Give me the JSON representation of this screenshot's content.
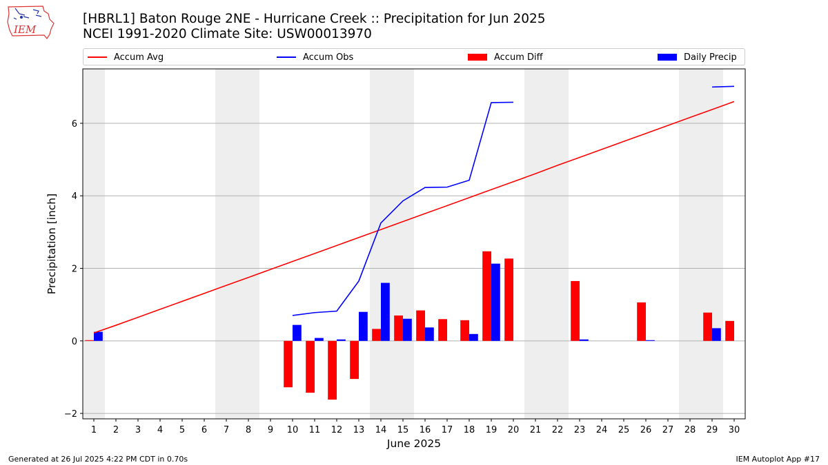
{
  "header": {
    "title_line1": "[HBRL1] Baton Rouge 2NE - Hurricane Creek :: Precipitation for Jun 2025",
    "title_line2": "NCEI 1991-2020 Climate Site: USW00013970",
    "logo_text": "IEM"
  },
  "legend": [
    {
      "label": "Accum Avg",
      "kind": "line",
      "color": "#ff0000"
    },
    {
      "label": "Accum Obs",
      "kind": "line",
      "color": "#0000ff"
    },
    {
      "label": "Accum Diff",
      "kind": "bar",
      "color": "#ff0000"
    },
    {
      "label": "Daily Precip",
      "kind": "bar",
      "color": "#0000ff"
    }
  ],
  "footer": {
    "generated": "Generated at 26 Jul 2025 4:22 PM CDT in 0.70s",
    "app": "IEM Autoplot App #17"
  },
  "chart_data": {
    "type": "bar",
    "title": "[HBRL1] Baton Rouge 2NE - Hurricane Creek :: Precipitation for Jun 2025",
    "xlabel": "June 2025",
    "ylabel": "Precipitation [inch]",
    "x": [
      1,
      2,
      3,
      4,
      5,
      6,
      7,
      8,
      9,
      10,
      11,
      12,
      13,
      14,
      15,
      16,
      17,
      18,
      19,
      20,
      21,
      22,
      23,
      24,
      25,
      26,
      27,
      28,
      29,
      30
    ],
    "xlim": [
      0.5,
      30.5
    ],
    "ylim": [
      -2.15,
      7.5
    ],
    "yticks": [
      -2,
      0,
      2,
      4,
      6
    ],
    "grid": "horizontal",
    "weekend_shading": [
      [
        0.5,
        1.5
      ],
      [
        6.5,
        8.5
      ],
      [
        13.5,
        15.5
      ],
      [
        20.5,
        22.5
      ],
      [
        27.5,
        29.5
      ]
    ],
    "series": [
      {
        "name": "Accum Avg",
        "kind": "line",
        "color": "#ff0000",
        "values": [
          0.22,
          0.43,
          0.65,
          0.87,
          1.09,
          1.31,
          1.53,
          1.75,
          1.97,
          2.19,
          2.41,
          2.63,
          2.85,
          3.07,
          3.29,
          3.51,
          3.73,
          3.95,
          4.17,
          4.39,
          4.61,
          4.84,
          5.06,
          5.28,
          5.5,
          5.72,
          5.94,
          6.16,
          6.38,
          6.6
        ]
      },
      {
        "name": "Accum Obs",
        "kind": "line",
        "color": "#0000ff",
        "values": [
          null,
          null,
          null,
          null,
          null,
          null,
          null,
          null,
          null,
          0.7,
          0.78,
          0.82,
          1.65,
          3.25,
          3.86,
          4.23,
          4.24,
          4.43,
          6.57,
          6.58,
          null,
          null,
          null,
          null,
          null,
          null,
          null,
          null,
          7.0,
          7.02
        ]
      },
      {
        "name": "Accum Diff",
        "kind": "bar",
        "color": "#ff0000",
        "values": [
          0.02,
          0,
          0,
          0,
          0,
          0,
          0,
          0,
          0,
          -1.28,
          -1.43,
          -1.62,
          -1.05,
          0.33,
          0.7,
          0.84,
          0.6,
          0.57,
          2.47,
          2.27,
          0,
          0,
          1.65,
          0,
          0,
          1.06,
          0,
          0,
          0.78,
          0.55
        ]
      },
      {
        "name": "Daily Precip",
        "kind": "bar",
        "color": "#0000ff",
        "values": [
          0.25,
          0,
          0,
          0,
          0,
          0,
          0,
          0,
          0,
          0.44,
          0.08,
          0.04,
          0.8,
          1.6,
          0.61,
          0.37,
          0,
          0.19,
          2.13,
          0,
          0,
          0,
          0.04,
          0,
          0,
          0.02,
          0,
          0,
          0.35,
          0
        ]
      }
    ]
  }
}
